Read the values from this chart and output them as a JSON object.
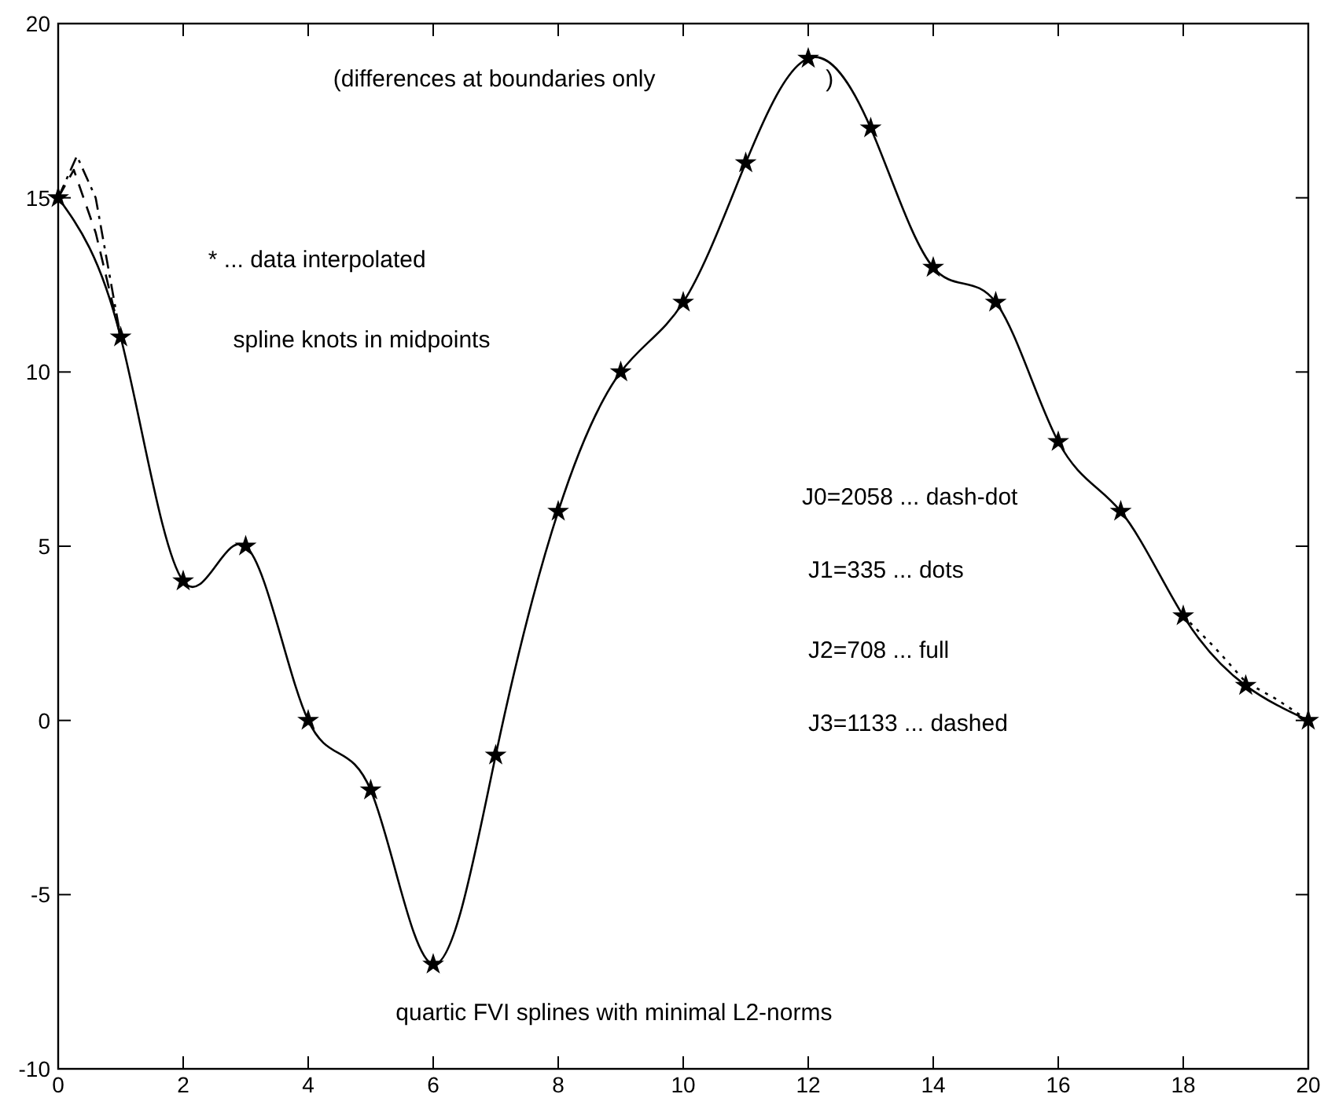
{
  "chart_data": {
    "type": "line",
    "xlim": [
      0,
      20
    ],
    "ylim": [
      -10,
      20
    ],
    "xticks": [
      0,
      2,
      4,
      6,
      8,
      10,
      12,
      14,
      16,
      18,
      20
    ],
    "yticks": [
      -10,
      -5,
      0,
      5,
      10,
      15,
      20
    ],
    "grid": false,
    "series": [
      {
        "color": "#000000",
        "line_style": "solid",
        "marker": "none",
        "x": [
          0,
          1,
          2,
          3,
          4,
          5,
          6,
          7,
          8,
          9,
          10,
          11,
          12,
          13,
          14,
          15,
          16,
          17,
          18,
          19,
          20
        ],
        "values": [
          15,
          11,
          4,
          5,
          0,
          -2,
          -7,
          -1,
          6,
          10,
          12,
          16,
          19,
          17,
          13,
          12,
          8,
          6,
          3,
          1,
          0
        ]
      },
      {
        "color": "#000000",
        "line_style": "dashdot",
        "marker": "none",
        "x": [
          0,
          0.3,
          0.6,
          1
        ],
        "values": [
          15,
          16.2,
          15,
          11
        ]
      },
      {
        "color": "#000000",
        "line_style": "dashed",
        "marker": "none",
        "x": [
          0,
          0.25,
          0.6,
          1
        ],
        "values": [
          15,
          15.8,
          14,
          11
        ]
      },
      {
        "color": "#000000",
        "line_style": "dotted",
        "marker": "none",
        "x": [
          18,
          18.5,
          19,
          19.5,
          20
        ],
        "values": [
          3,
          2.1,
          1.1,
          0.6,
          0
        ]
      },
      {
        "type": "scatter",
        "color": "#000000",
        "marker": "star",
        "x": [
          0,
          1,
          2,
          3,
          4,
          5,
          6,
          7,
          8,
          9,
          10,
          11,
          12,
          13,
          14,
          15,
          16,
          17,
          18,
          19,
          20
        ],
        "values": [
          15,
          11,
          4,
          5,
          0,
          -2,
          -7,
          -1,
          6,
          10,
          12,
          16,
          19,
          17,
          13,
          12,
          8,
          6,
          3,
          1,
          0
        ]
      }
    ],
    "annotations": [
      "(differences at boundaries only                          )",
      "* ... data interpolated",
      "spline knots in midpoints",
      "J0=2058 ... dash-dot",
      "J1=335 ... dots",
      "J2=708 ... full",
      "J3=1133 ... dashed",
      "quartic FVI splines with minimal L2-norms"
    ]
  }
}
